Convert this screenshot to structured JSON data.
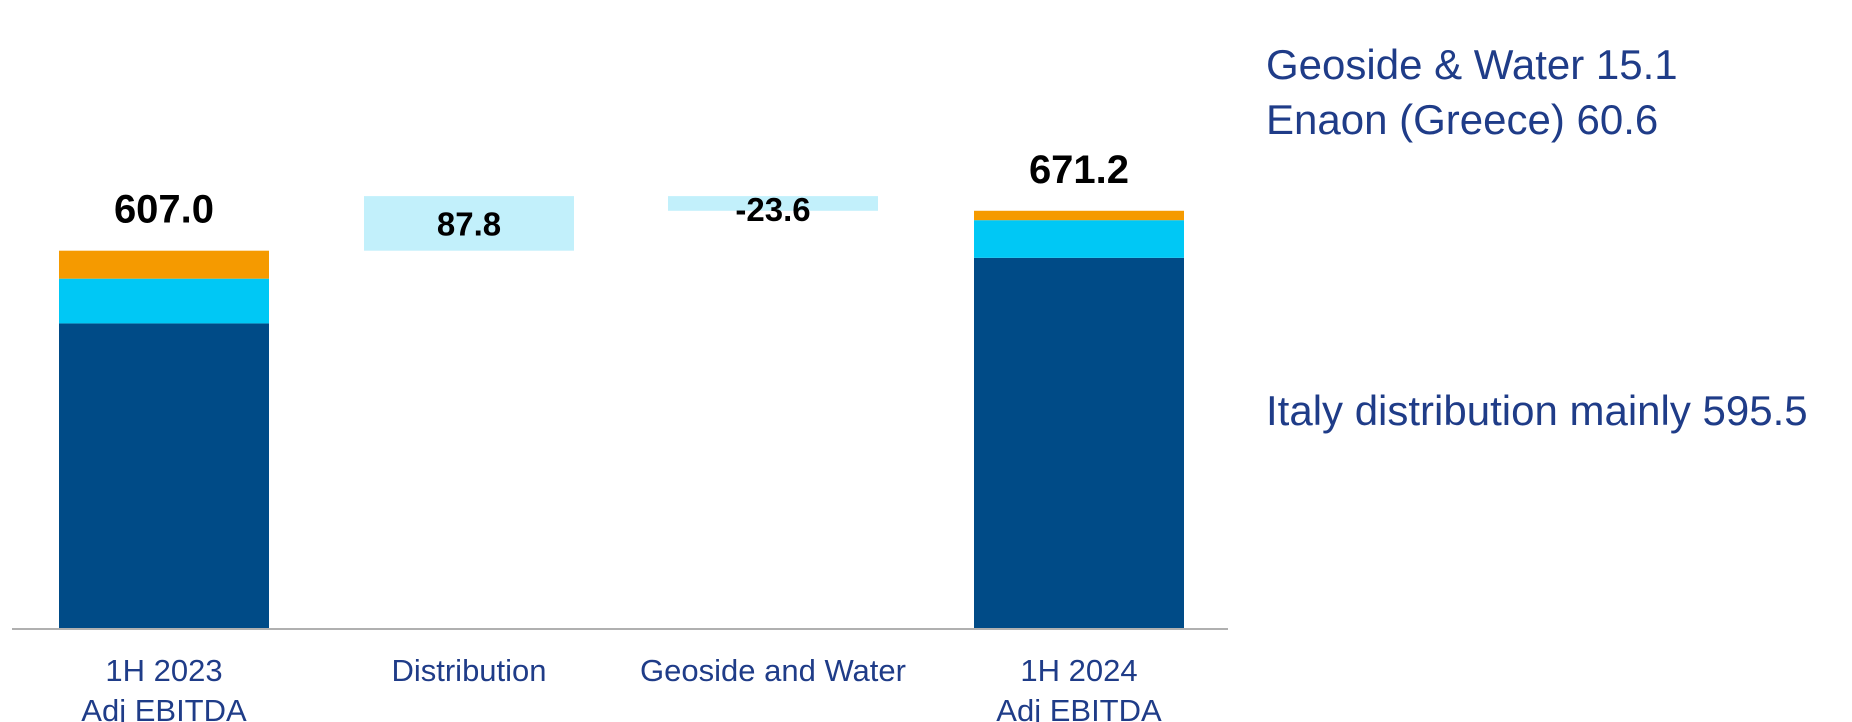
{
  "chart_data": {
    "type": "waterfall",
    "categories": [
      [
        "1H 2023",
        "Adj EBITDA"
      ],
      [
        "Distribution"
      ],
      [
        "Geoside and Water"
      ],
      [
        "1H 2024",
        "Adj EBITDA"
      ]
    ],
    "bars": [
      {
        "kind": "total",
        "label": "607.0",
        "value": 607.0,
        "segments": [
          {
            "name": "Italy distribution mainly",
            "value": 490.0,
            "color": "#004b87"
          },
          {
            "name": "Enaon (Greece)",
            "value": 72.0,
            "color": "#00c8f5"
          },
          {
            "name": "Geoside & Water",
            "value": 45.0,
            "color": "#f59a00"
          }
        ]
      },
      {
        "kind": "delta",
        "label": "87.8",
        "value": 87.8,
        "color": "#c2f0fb"
      },
      {
        "kind": "delta",
        "label": "-23.6",
        "value": -23.6,
        "color": "#c2f0fb"
      },
      {
        "kind": "total",
        "label": "671.2",
        "value": 671.2,
        "segments": [
          {
            "name": "Italy distribution mainly",
            "value": 595.5,
            "color": "#004b87"
          },
          {
            "name": "Enaon (Greece)",
            "value": 60.6,
            "color": "#00c8f5"
          },
          {
            "name": "Geoside & Water",
            "value": 15.1,
            "color": "#f59a00"
          }
        ]
      }
    ],
    "annotations": {
      "geoside": "Geoside & Water 15.1",
      "enaon": "Enaon (Greece) 60.6",
      "italy": "Italy distribution mainly 595.5"
    },
    "colors": {
      "axis": "#b0b0b0",
      "category_text": "#1f3c88",
      "value_text": "#000000"
    }
  }
}
